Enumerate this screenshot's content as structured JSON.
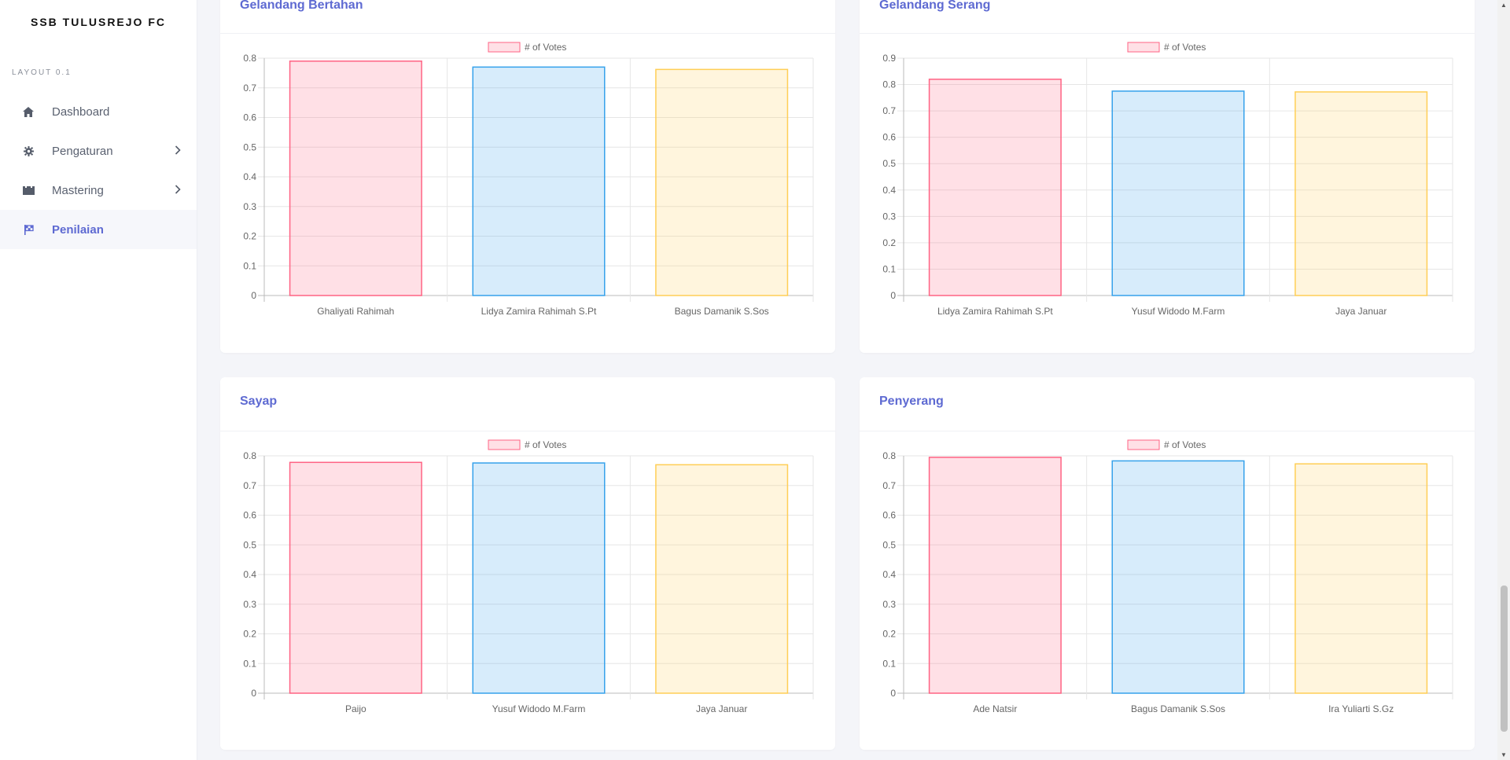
{
  "sidebar": {
    "brand": "SSB TULUSREJO FC",
    "section_label": "LAYOUT 0.1",
    "items": [
      {
        "label": "Dashboard",
        "icon": "home-icon",
        "active": false,
        "has_chevron": false
      },
      {
        "label": "Pengaturan",
        "icon": "gear-icon",
        "active": false,
        "has_chevron": true
      },
      {
        "label": "Mastering",
        "icon": "stadium-icon",
        "active": false,
        "has_chevron": true
      },
      {
        "label": "Penilaian",
        "icon": "flag-icon",
        "active": true,
        "has_chevron": false
      }
    ]
  },
  "colors": {
    "accent": "#5e6ad2",
    "bar_fills": [
      "rgba(255,99,132,0.2)",
      "rgba(54,162,235,0.2)",
      "rgba(255,206,86,0.2)"
    ],
    "bar_borders": [
      "rgb(255,99,132)",
      "rgb(54,162,235)",
      "rgb(255,206,86)"
    ]
  },
  "chart_data": [
    {
      "type": "bar",
      "title": "Gelandang Bertahan",
      "legend": "# of Votes",
      "categories": [
        "Ghaliyati Rahimah",
        "Lidya Zamira Rahimah S.Pt",
        "Bagus Damanik S.Sos"
      ],
      "values": [
        0.79,
        0.77,
        0.762
      ],
      "ylim": [
        0,
        0.8
      ],
      "yticks": [
        "0",
        "0.1",
        "0.2",
        "0.3",
        "0.4",
        "0.5",
        "0.6",
        "0.7",
        "0.8"
      ]
    },
    {
      "type": "bar",
      "title": "Gelandang Serang",
      "legend": "# of Votes",
      "categories": [
        "Lidya Zamira Rahimah S.Pt",
        "Yusuf Widodo M.Farm",
        "Jaya Januar"
      ],
      "values": [
        0.82,
        0.775,
        0.772
      ],
      "ylim": [
        0,
        0.9
      ],
      "yticks": [
        "0",
        "0.1",
        "0.2",
        "0.3",
        "0.4",
        "0.5",
        "0.6",
        "0.7",
        "0.8",
        "0.9"
      ]
    },
    {
      "type": "bar",
      "title": "Sayap",
      "legend": "# of Votes",
      "categories": [
        "Paijo",
        "Yusuf Widodo M.Farm",
        "Jaya Januar"
      ],
      "values": [
        0.778,
        0.776,
        0.77
      ],
      "ylim": [
        0,
        0.8
      ],
      "yticks": [
        "0",
        "0.1",
        "0.2",
        "0.3",
        "0.4",
        "0.5",
        "0.6",
        "0.7",
        "0.8"
      ]
    },
    {
      "type": "bar",
      "title": "Penyerang",
      "legend": "# of Votes",
      "categories": [
        "Ade Natsir",
        "Bagus Damanik S.Sos",
        "Ira Yuliarti S.Gz"
      ],
      "values": [
        0.795,
        0.783,
        0.773
      ],
      "ylim": [
        0,
        0.8
      ],
      "yticks": [
        "0",
        "0.1",
        "0.2",
        "0.3",
        "0.4",
        "0.5",
        "0.6",
        "0.7",
        "0.8"
      ]
    }
  ]
}
